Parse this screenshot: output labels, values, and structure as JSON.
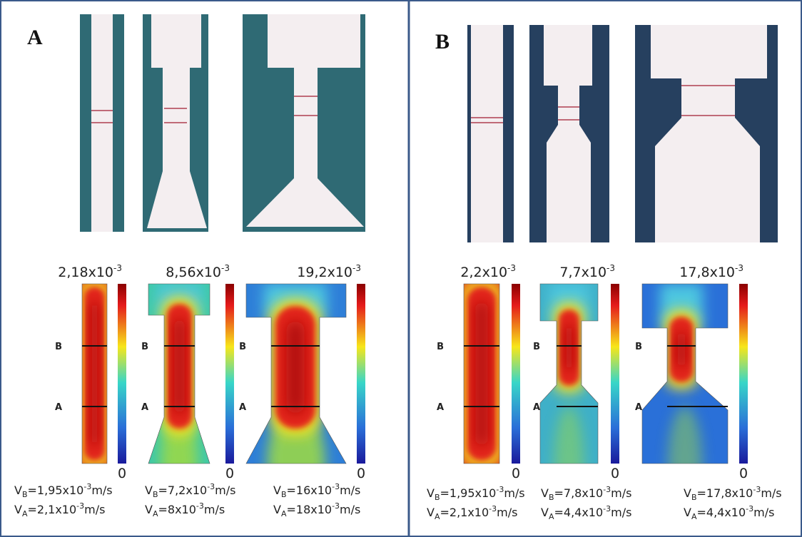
{
  "panels": [
    {
      "label": "A",
      "items": [
        {
          "scale_max": {
            "mantissa": "2,18x10",
            "exponent": "-3"
          },
          "scale_min": "0",
          "markers": [
            "B",
            "A"
          ],
          "velocity_b": {
            "symbol": "V",
            "subscript": "B",
            "value": "=1,95x10",
            "exponent": "-3",
            "unit": "m/s"
          },
          "velocity_a": {
            "symbol": "V",
            "subscript": "A",
            "value": "=2,1x10",
            "exponent": "-3",
            "unit": "m/s"
          }
        },
        {
          "scale_max": {
            "mantissa": "8,56x10",
            "exponent": "-3"
          },
          "scale_min": "0",
          "markers": [
            "B",
            "A"
          ],
          "velocity_b": {
            "symbol": "V",
            "subscript": "B",
            "value": "=7,2x10",
            "exponent": "-3",
            "unit": "m/s"
          },
          "velocity_a": {
            "symbol": "V",
            "subscript": "A",
            "value": "=8x10",
            "exponent": "-3",
            "unit": "m/s"
          }
        },
        {
          "scale_max": {
            "mantissa": "19,2x10",
            "exponent": "-3"
          },
          "scale_min": "0",
          "markers": [
            "B",
            "A"
          ],
          "velocity_b": {
            "symbol": "V",
            "subscript": "B",
            "value": "=16x10",
            "exponent": "-3",
            "unit": "m/s"
          },
          "velocity_a": {
            "symbol": "V",
            "subscript": "A",
            "value": "=18x10",
            "exponent": "-3",
            "unit": "m/s"
          }
        }
      ]
    },
    {
      "label": "B",
      "items": [
        {
          "scale_max": {
            "mantissa": "2,2x10",
            "exponent": "-3"
          },
          "scale_min": "0",
          "markers": [
            "B",
            "A"
          ],
          "velocity_b": {
            "symbol": "V",
            "subscript": "B",
            "value": "=1,95x10",
            "exponent": "-3",
            "unit": "m/s"
          },
          "velocity_a": {
            "symbol": "V",
            "subscript": "A",
            "value": "=2,1x10",
            "exponent": "-3",
            "unit": "m/s"
          }
        },
        {
          "scale_max": {
            "mantissa": "7,7x10",
            "exponent": "-3"
          },
          "scale_min": "0",
          "markers": [
            "B",
            "A"
          ],
          "velocity_b": {
            "symbol": "V",
            "subscript": "B",
            "value": "=7,8x10",
            "exponent": "-3",
            "unit": "m/s"
          },
          "velocity_a": {
            "symbol": "V",
            "subscript": "A",
            "value": "=4,4x10",
            "exponent": "-3",
            "unit": "m/s"
          }
        },
        {
          "scale_max": {
            "mantissa": "17,8x10",
            "exponent": "-3"
          },
          "scale_min": "0",
          "markers": [
            "B",
            "A"
          ],
          "velocity_b": {
            "symbol": "V",
            "subscript": "B",
            "value": "=17,8x10",
            "exponent": "-3",
            "unit": "m/s"
          },
          "velocity_a": {
            "symbol": "V",
            "subscript": "A",
            "value": "=4,4x10",
            "exponent": "-3",
            "unit": "m/s"
          }
        }
      ]
    }
  ]
}
